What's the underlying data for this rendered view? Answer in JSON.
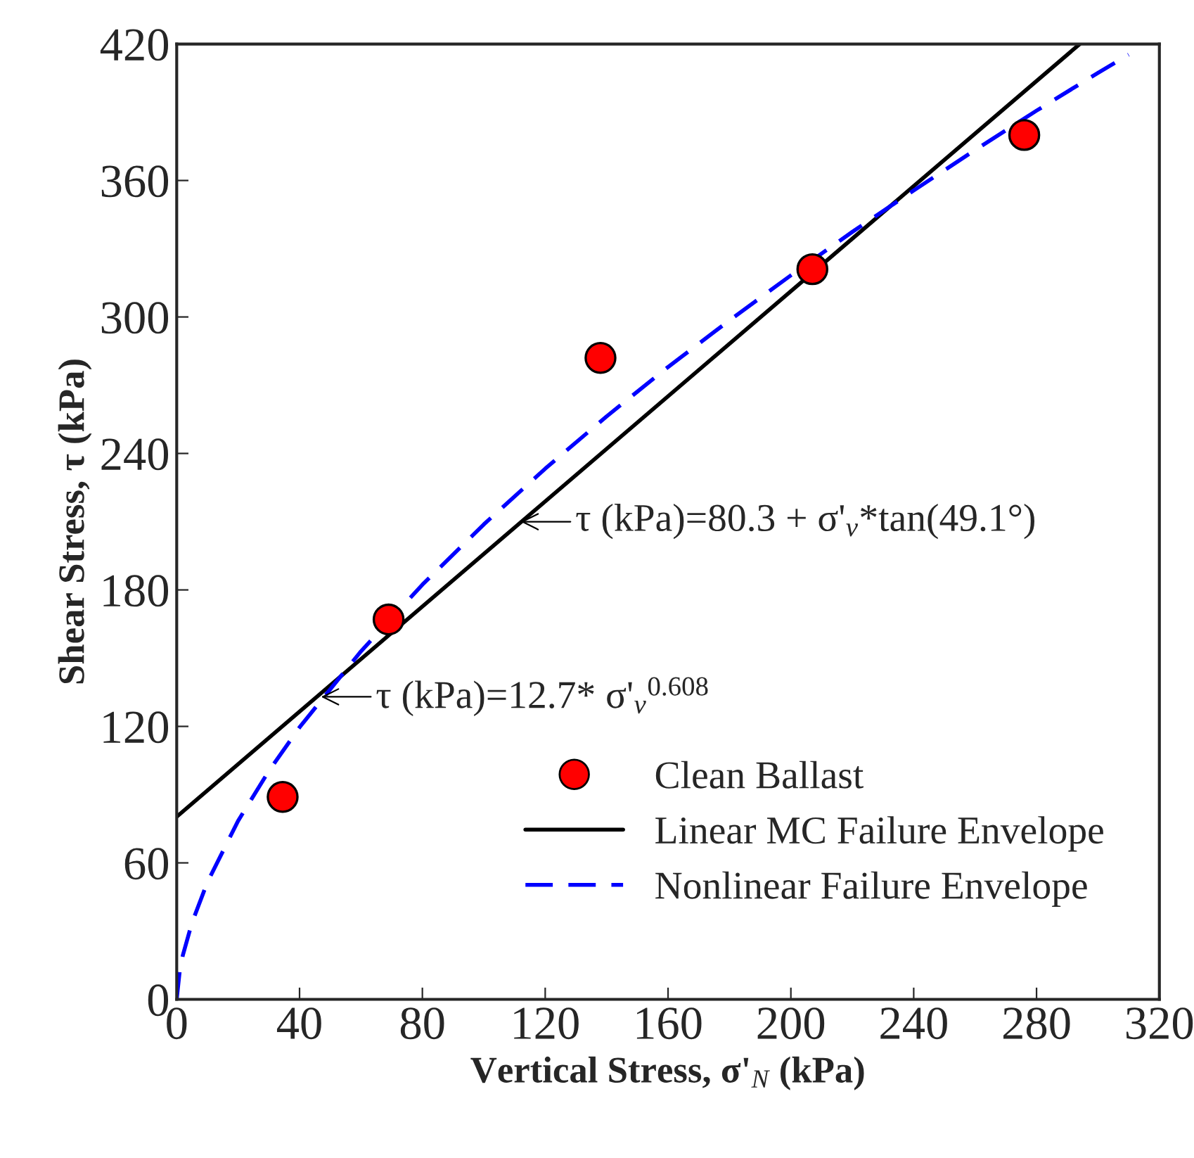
{
  "chart_data": {
    "type": "scatter",
    "xlabel": "Vertical Stress, σ'$_{N}$ (kPa)",
    "ylabel": "Shear Stress, τ (kPa)",
    "xlim": [
      0,
      320
    ],
    "ylim": [
      0,
      420
    ],
    "xticks": [
      0,
      40,
      80,
      120,
      160,
      200,
      240,
      280,
      320
    ],
    "yticks": [
      0,
      60,
      120,
      180,
      240,
      300,
      360,
      420
    ],
    "grid": false,
    "legend": "bottom right",
    "series": [
      {
        "name": "Clean Ballast",
        "color": "#ff0000",
        "marker": "circle",
        "x": [
          34.5,
          69,
          138,
          207,
          276
        ],
        "values": [
          89,
          167,
          282,
          321,
          380
        ]
      },
      {
        "name": "Linear MC Failure Envelope",
        "type": "line",
        "color": "#000000",
        "line_style": "solid",
        "marker": "none",
        "x": [
          0,
          294
        ],
        "values": [
          80.3,
          419.9
        ]
      },
      {
        "name": "Nonlinear Failure Envelope",
        "type": "line",
        "color": "#0000ff",
        "line_style": "dashed",
        "marker": "none",
        "x": [
          0,
          1,
          2,
          5,
          10,
          20,
          30,
          40,
          60,
          80,
          100,
          120,
          140,
          160,
          180,
          200,
          220,
          240,
          260,
          280,
          300,
          310
        ],
        "values": [
          0,
          12.7,
          19.4,
          33.8,
          51.5,
          78.5,
          100.4,
          119.6,
          153.0,
          182.3,
          208.8,
          233.3,
          256.3,
          278.0,
          298.5,
          318.3,
          337.4,
          355.6,
          373.4,
          390.7,
          407.3,
          415.3
        ]
      }
    ],
    "annotations": [
      {
        "text": "τ (kPa)=80.3 + σ'$_{v}$*tan(49.1°)",
        "x": 112,
        "y": 210
      },
      {
        "text": "τ (kPa)=12.7* σ'$_{v}$$^{0.608}$",
        "x": 47,
        "y": 133
      }
    ]
  }
}
